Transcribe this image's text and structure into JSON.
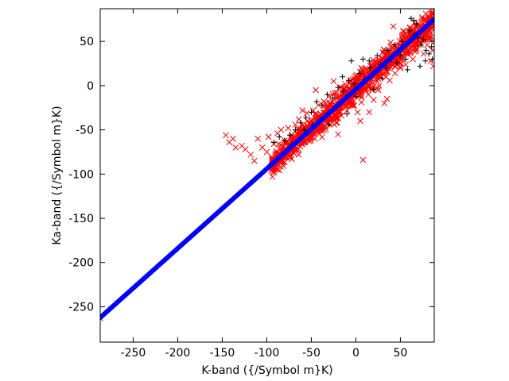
{
  "chart_data": {
    "type": "scatter",
    "title": "",
    "xlabel": "K-band ({/Symbol m}K)",
    "ylabel": "Ka-band ({/Symbol m}K)",
    "xlim": [
      -287,
      88
    ],
    "ylim": [
      -290,
      87
    ],
    "xticks": [
      -250,
      -200,
      -150,
      -100,
      -50,
      0,
      50
    ],
    "yticks": [
      -250,
      -200,
      -150,
      -100,
      -50,
      0,
      50
    ],
    "grid": false,
    "legend": "none",
    "series": [
      {
        "marker": "x",
        "color": "#ff0000",
        "points": [
          [
            -287,
            -263
          ],
          [
            -146,
            -56
          ],
          [
            -142,
            -64
          ],
          [
            -138,
            -60
          ],
          [
            -135,
            -70
          ],
          [
            -128,
            -68
          ],
          [
            -124,
            -72
          ],
          [
            -118,
            -78
          ],
          [
            -114,
            -85
          ],
          [
            -110,
            -60
          ],
          [
            -105,
            -70
          ],
          [
            -98,
            -58
          ],
          [
            -92,
            -66
          ],
          [
            -88,
            -54
          ],
          [
            -84,
            -50
          ],
          [
            -80,
            -62
          ],
          [
            -76,
            -48
          ],
          [
            -72,
            -83
          ],
          [
            -70,
            -60
          ],
          [
            -68,
            -44
          ],
          [
            -64,
            -38
          ],
          [
            -60,
            -66
          ],
          [
            -58,
            -46
          ],
          [
            -55,
            -31
          ],
          [
            -52,
            -54
          ],
          [
            -50,
            -40
          ],
          [
            -48,
            -28
          ],
          [
            -46,
            -60
          ],
          [
            -44,
            -34
          ],
          [
            -42,
            -22
          ],
          [
            -40,
            -50
          ],
          [
            -38,
            -36
          ],
          [
            -36,
            -18
          ],
          [
            -34,
            -46
          ],
          [
            -32,
            -26
          ],
          [
            -30,
            -12
          ],
          [
            -28,
            -38
          ],
          [
            -26,
            -30
          ],
          [
            -24,
            -8
          ],
          [
            -22,
            -42
          ],
          [
            -20,
            -24
          ],
          [
            -18,
            -2
          ],
          [
            -16,
            -34
          ],
          [
            -14,
            -16
          ],
          [
            -12,
            2
          ],
          [
            -10,
            -28
          ],
          [
            -8,
            -12
          ],
          [
            -6,
            6
          ],
          [
            -4,
            -22
          ],
          [
            -2,
            -6
          ],
          [
            0,
            10
          ],
          [
            2,
            -30
          ],
          [
            4,
            -2
          ],
          [
            6,
            14
          ],
          [
            8,
            -84
          ],
          [
            10,
            4
          ],
          [
            12,
            18
          ],
          [
            14,
            -10
          ],
          [
            16,
            8
          ],
          [
            18,
            22
          ],
          [
            20,
            -16
          ],
          [
            22,
            12
          ],
          [
            24,
            26
          ],
          [
            26,
            0
          ],
          [
            28,
            16
          ],
          [
            30,
            30
          ],
          [
            32,
            -20
          ],
          [
            34,
            20
          ],
          [
            36,
            34
          ],
          [
            38,
            6
          ],
          [
            40,
            24
          ],
          [
            42,
            38
          ],
          [
            44,
            14
          ],
          [
            46,
            28
          ],
          [
            48,
            40
          ],
          [
            50,
            20
          ],
          [
            52,
            32
          ],
          [
            54,
            44
          ],
          [
            56,
            24
          ],
          [
            58,
            36
          ],
          [
            60,
            46
          ],
          [
            64,
            30
          ],
          [
            68,
            42
          ],
          [
            72,
            50
          ],
          [
            76,
            36
          ],
          [
            80,
            46
          ],
          [
            84,
            28
          ],
          [
            86,
            40
          ],
          [
            88,
            52
          ],
          [
            87,
            22
          ],
          [
            42,
            67
          ],
          [
            15,
            -30
          ],
          [
            -20,
            -55
          ],
          [
            -60,
            -28
          ],
          [
            -100,
            -75
          ],
          [
            -45,
            -5
          ],
          [
            -25,
            5
          ],
          [
            5,
            -40
          ],
          [
            25,
            -5
          ],
          [
            35,
            -15
          ]
        ]
      },
      {
        "marker": "+",
        "color": "#000000",
        "points": [
          [
            62,
            76
          ],
          [
            65,
            74
          ],
          [
            68,
            70
          ],
          [
            60,
            62
          ],
          [
            66,
            58
          ],
          [
            70,
            54
          ],
          [
            73,
            46
          ],
          [
            76,
            52
          ],
          [
            79,
            40
          ],
          [
            82,
            36
          ],
          [
            85,
            44
          ],
          [
            88,
            48
          ],
          [
            86,
            30
          ],
          [
            78,
            28
          ],
          [
            72,
            22
          ],
          [
            56,
            30
          ],
          [
            58,
            18
          ],
          [
            50,
            34
          ],
          [
            46,
            26
          ],
          [
            40,
            30
          ],
          [
            34,
            20
          ],
          [
            28,
            24
          ],
          [
            22,
            16
          ],
          [
            16,
            20
          ],
          [
            10,
            8
          ],
          [
            4,
            14
          ],
          [
            -2,
            2
          ],
          [
            -8,
            6
          ],
          [
            -14,
            -6
          ],
          [
            -20,
            -2
          ],
          [
            -26,
            -14
          ],
          [
            -32,
            -10
          ],
          [
            -38,
            -22
          ],
          [
            -44,
            -18
          ],
          [
            -50,
            -30
          ],
          [
            -56,
            -36
          ],
          [
            -62,
            -42
          ],
          [
            -68,
            -50
          ],
          [
            -74,
            -56
          ],
          [
            -80,
            -62
          ],
          [
            -86,
            -58
          ],
          [
            -92,
            -64
          ],
          [
            -72,
            -66
          ],
          [
            -40,
            -38
          ],
          [
            -30,
            -44
          ],
          [
            -10,
            -32
          ],
          [
            0,
            -12
          ],
          [
            20,
            -4
          ],
          [
            30,
            8
          ],
          [
            -5,
            28
          ],
          [
            8,
            30
          ],
          [
            24,
            34
          ],
          [
            36,
            40
          ],
          [
            44,
            46
          ],
          [
            52,
            50
          ],
          [
            15,
            28
          ],
          [
            -15,
            10
          ],
          [
            -25,
            -26
          ],
          [
            -48,
            -44
          ],
          [
            -58,
            -50
          ]
        ]
      },
      {
        "marker": "*",
        "color": "#0000ff",
        "x_range": [
          -287,
          88
        ],
        "fit": {
          "slope": 0.9,
          "intercept": -4
        }
      }
    ]
  }
}
